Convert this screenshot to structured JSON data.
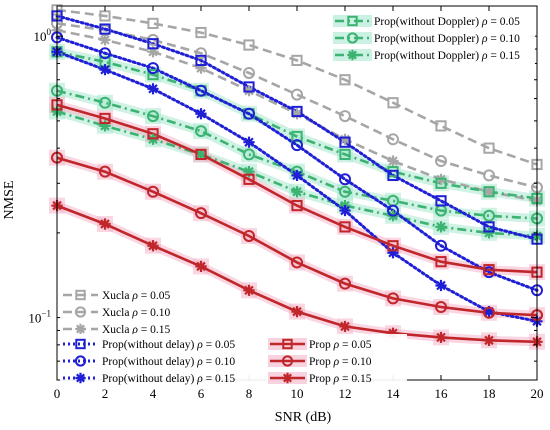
{
  "chart_data": {
    "type": "line",
    "title": "",
    "xlabel": "SNR (dB)",
    "ylabel": "NMSE",
    "yscale": "log",
    "xlim": [
      0,
      20
    ],
    "ylim": [
      0.06,
      1.28
    ],
    "grid": false,
    "x": [
      0,
      2,
      4,
      6,
      8,
      10,
      12,
      14,
      16,
      18,
      20
    ],
    "x_ticks": [
      "0",
      "2",
      "4",
      "6",
      "8",
      "10",
      "12",
      "14",
      "16",
      "18",
      "20"
    ],
    "y_tick_labels": [
      {
        "value": 1,
        "base": "10",
        "exp": "0"
      },
      {
        "value": 0.1,
        "base": "10",
        "exp": "−1"
      }
    ],
    "series": [
      {
        "name": "Xucla",
        "rho": "0.05",
        "color": "#a6a6a6",
        "dash": "dash",
        "marker": "square",
        "highlight": "",
        "values": [
          1.24,
          1.18,
          1.11,
          1.03,
          0.93,
          0.82,
          0.7,
          0.58,
          0.48,
          0.4,
          0.35
        ]
      },
      {
        "name": "Xucla",
        "rho": "0.10",
        "color": "#a6a6a6",
        "dash": "dash",
        "marker": "circle",
        "highlight": "",
        "values": [
          1.11,
          1.05,
          0.97,
          0.87,
          0.74,
          0.62,
          0.52,
          0.43,
          0.36,
          0.32,
          0.29
        ]
      },
      {
        "name": "Xucla",
        "rho": "0.15",
        "color": "#a6a6a6",
        "dash": "dash",
        "marker": "star",
        "highlight": "",
        "values": [
          1.05,
          0.97,
          0.88,
          0.77,
          0.64,
          0.53,
          0.43,
          0.36,
          0.31,
          0.28,
          0.26
        ]
      },
      {
        "name": "Prop(without Doppler)",
        "rho": "0.05",
        "color": "#3cb371",
        "dash": "dashdot",
        "marker": "square",
        "highlight": "#a8e8cf",
        "values": [
          0.88,
          0.81,
          0.73,
          0.64,
          0.53,
          0.44,
          0.38,
          0.33,
          0.3,
          0.28,
          0.265
        ]
      },
      {
        "name": "Prop(without Doppler)",
        "rho": "0.10",
        "color": "#3cb371",
        "dash": "dashdot",
        "marker": "circle",
        "highlight": "#a8e8cf",
        "values": [
          0.64,
          0.58,
          0.52,
          0.46,
          0.38,
          0.33,
          0.28,
          0.26,
          0.24,
          0.23,
          0.225
        ]
      },
      {
        "name": "Prop(without Doppler)",
        "rho": "0.15",
        "color": "#3cb371",
        "dash": "dashdot",
        "marker": "star",
        "highlight": "#a8e8cf",
        "values": [
          0.54,
          0.48,
          0.43,
          0.38,
          0.33,
          0.28,
          0.25,
          0.23,
          0.21,
          0.2,
          0.195
        ]
      },
      {
        "name": "Prop(without delay)",
        "rho": "0.05",
        "color": "#1f1fd6",
        "dash": "dot",
        "marker": "square",
        "highlight": "",
        "values": [
          1.18,
          1.06,
          0.94,
          0.82,
          0.66,
          0.54,
          0.42,
          0.32,
          0.26,
          0.21,
          0.19
        ]
      },
      {
        "name": "Prop(without delay)",
        "rho": "0.10",
        "color": "#1f1fd6",
        "dash": "dot",
        "marker": "circle",
        "highlight": "",
        "values": [
          0.99,
          0.87,
          0.77,
          0.64,
          0.53,
          0.41,
          0.31,
          0.24,
          0.18,
          0.145,
          0.125
        ]
      },
      {
        "name": "Prop(without delay)",
        "rho": "0.15",
        "color": "#1f1fd6",
        "dash": "dot",
        "marker": "star",
        "highlight": "",
        "values": [
          0.88,
          0.76,
          0.65,
          0.53,
          0.42,
          0.32,
          0.24,
          0.17,
          0.13,
          0.105,
          0.097
        ]
      },
      {
        "name": "Prop",
        "rho": "0.05",
        "color": "#c0262a",
        "dash": "solid",
        "marker": "square",
        "highlight": "#f4b4c8",
        "values": [
          0.57,
          0.51,
          0.45,
          0.38,
          0.31,
          0.25,
          0.21,
          0.18,
          0.158,
          0.148,
          0.145
        ]
      },
      {
        "name": "Prop",
        "rho": "0.10",
        "color": "#c0262a",
        "dash": "solid",
        "marker": "circle",
        "highlight": "#f4b4c8",
        "values": [
          0.37,
          0.33,
          0.28,
          0.235,
          0.195,
          0.157,
          0.132,
          0.117,
          0.109,
          0.104,
          0.102
        ]
      },
      {
        "name": "Prop",
        "rho": "0.15",
        "color": "#c0262a",
        "dash": "solid",
        "marker": "star",
        "highlight": "#f4b4c8",
        "values": [
          0.25,
          0.215,
          0.18,
          0.152,
          0.125,
          0.105,
          0.093,
          0.088,
          0.085,
          0.083,
          0.082
        ]
      }
    ],
    "legends": [
      {
        "placement": "top-right",
        "entries": [
          3,
          4,
          5
        ]
      },
      {
        "placement": "bottom-left",
        "entries": [
          0,
          1,
          2
        ]
      },
      {
        "placement": "bottom-center",
        "entries": [
          6,
          7,
          8
        ]
      },
      {
        "placement": "bottom-center-right",
        "entries": [
          9,
          10,
          11
        ]
      }
    ]
  }
}
